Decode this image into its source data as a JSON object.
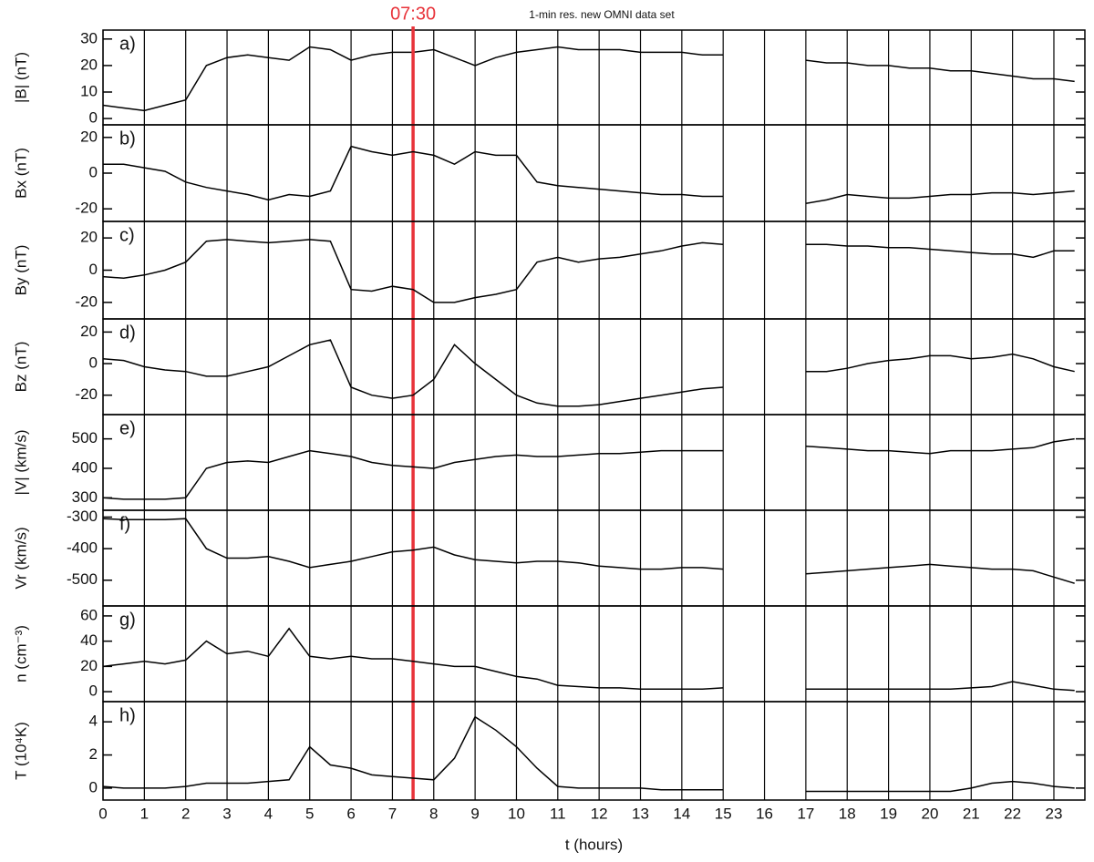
{
  "chart_data": [
    {
      "type": "line",
      "title": "1-min res. new OMNI data set",
      "panel_label": "a)",
      "y_label": "|B| (nT)",
      "annotation": {
        "x": 7.5,
        "label": "07:30",
        "color": "#e8333a"
      },
      "xlim": [
        0,
        23.75
      ],
      "xticks": [
        0,
        1,
        2,
        3,
        4,
        5,
        6,
        7,
        8,
        9,
        10,
        11,
        12,
        13,
        14,
        15,
        16,
        17,
        18,
        19,
        20,
        21,
        22,
        23
      ],
      "ylim": [
        -1,
        32
      ],
      "yticks": [
        0,
        10,
        20,
        30
      ],
      "grid": true,
      "x": [
        0,
        0.5,
        1,
        1.5,
        2,
        2.5,
        3,
        3.5,
        4,
        4.5,
        5,
        5.5,
        6,
        6.5,
        7,
        7.5,
        8,
        8.5,
        9,
        9.5,
        10,
        10.5,
        11,
        11.5,
        12,
        12.5,
        13,
        13.5,
        14,
        14.5,
        15,
        16,
        17,
        17.5,
        18,
        18.5,
        19,
        19.5,
        20,
        20.5,
        21,
        21.5,
        22,
        22.5,
        23,
        23.5
      ],
      "color": "#000000",
      "values": [
        5,
        4,
        3,
        5,
        7,
        20,
        23,
        24,
        23,
        22,
        27,
        26,
        22,
        24,
        25,
        25,
        26,
        23,
        20,
        23,
        25,
        26,
        27,
        26,
        26,
        26,
        25,
        25,
        25,
        24,
        24,
        null,
        22,
        21,
        21,
        20,
        20,
        19,
        19,
        18,
        18,
        17,
        16,
        15,
        15,
        14
      ]
    },
    {
      "type": "line",
      "panel_label": "b)",
      "y_label": "Bx (nT)",
      "xlim": [
        0,
        23.75
      ],
      "xticks": [
        0,
        1,
        2,
        3,
        4,
        5,
        6,
        7,
        8,
        9,
        10,
        11,
        12,
        13,
        14,
        15,
        16,
        17,
        18,
        19,
        20,
        21,
        22,
        23
      ],
      "ylim": [
        -25,
        25
      ],
      "yticks": [
        -20,
        0,
        20
      ],
      "grid": true,
      "x": [
        0,
        0.5,
        1,
        1.5,
        2,
        2.5,
        3,
        3.5,
        4,
        4.5,
        5,
        5.5,
        6,
        6.5,
        7,
        7.5,
        8,
        8.5,
        9,
        9.5,
        10,
        10.5,
        11,
        11.5,
        12,
        12.5,
        13,
        13.5,
        14,
        14.5,
        15,
        16,
        17,
        17.5,
        18,
        18.5,
        19,
        19.5,
        20,
        20.5,
        21,
        21.5,
        22,
        22.5,
        23,
        23.5
      ],
      "color": "#000000",
      "values": [
        5,
        5,
        3,
        1,
        -5,
        -8,
        -10,
        -12,
        -15,
        -12,
        -13,
        -10,
        15,
        12,
        10,
        12,
        10,
        5,
        12,
        10,
        10,
        -5,
        -7,
        -8,
        -9,
        -10,
        -11,
        -12,
        -12,
        -13,
        -13,
        null,
        -17,
        -15,
        -12,
        -13,
        -14,
        -14,
        -13,
        -12,
        -12,
        -11,
        -11,
        -12,
        -11,
        -10
      ]
    },
    {
      "type": "line",
      "panel_label": "c)",
      "y_label": "By (nT)",
      "xlim": [
        0,
        23.75
      ],
      "xticks": [
        0,
        1,
        2,
        3,
        4,
        5,
        6,
        7,
        8,
        9,
        10,
        11,
        12,
        13,
        14,
        15,
        16,
        17,
        18,
        19,
        20,
        21,
        22,
        23
      ],
      "ylim": [
        -28,
        28
      ],
      "yticks": [
        -20,
        0,
        20
      ],
      "grid": true,
      "x": [
        0,
        0.5,
        1,
        1.5,
        2,
        2.5,
        3,
        3.5,
        4,
        4.5,
        5,
        5.5,
        6,
        6.5,
        7,
        7.5,
        8,
        8.5,
        9,
        9.5,
        10,
        10.5,
        11,
        11.5,
        12,
        12.5,
        13,
        13.5,
        14,
        14.5,
        15,
        16,
        17,
        17.5,
        18,
        18.5,
        19,
        19.5,
        20,
        20.5,
        21,
        21.5,
        22,
        22.5,
        23,
        23.5
      ],
      "color": "#000000",
      "values": [
        -4,
        -5,
        -3,
        0,
        5,
        18,
        19,
        18,
        17,
        18,
        19,
        18,
        -12,
        -13,
        -10,
        -12,
        -20,
        -20,
        -17,
        -15,
        -12,
        5,
        8,
        5,
        7,
        8,
        10,
        12,
        15,
        17,
        16,
        null,
        16,
        16,
        15,
        15,
        14,
        14,
        13,
        12,
        11,
        10,
        10,
        8,
        12,
        12
      ]
    },
    {
      "type": "line",
      "panel_label": "d)",
      "y_label": "Bz (nT)",
      "xlim": [
        0,
        23.75
      ],
      "xticks": [
        0,
        1,
        2,
        3,
        4,
        5,
        6,
        7,
        8,
        9,
        10,
        11,
        12,
        13,
        14,
        15,
        16,
        17,
        18,
        19,
        20,
        21,
        22,
        23
      ],
      "ylim": [
        -30,
        26
      ],
      "yticks": [
        -20,
        0,
        20
      ],
      "grid": true,
      "x": [
        0,
        0.5,
        1,
        1.5,
        2,
        2.5,
        3,
        3.5,
        4,
        4.5,
        5,
        5.5,
        6,
        6.5,
        7,
        7.5,
        8,
        8.5,
        9,
        9.5,
        10,
        10.5,
        11,
        11.5,
        12,
        12.5,
        13,
        13.5,
        14,
        14.5,
        15,
        16,
        17,
        17.5,
        18,
        18.5,
        19,
        19.5,
        20,
        20.5,
        21,
        21.5,
        22,
        22.5,
        23,
        23.5
      ],
      "color": "#000000",
      "values": [
        3,
        2,
        -2,
        -4,
        -5,
        -8,
        -8,
        -5,
        -2,
        5,
        12,
        15,
        -15,
        -20,
        -22,
        -20,
        -10,
        12,
        0,
        -10,
        -20,
        -25,
        -27,
        -27,
        -26,
        -24,
        -22,
        -20,
        -18,
        -16,
        -15,
        null,
        -5,
        -5,
        -3,
        0,
        2,
        3,
        5,
        5,
        3,
        4,
        6,
        3,
        -2,
        -5
      ]
    },
    {
      "type": "line",
      "panel_label": "e)",
      "y_label": "|V| (km/s)",
      "xlim": [
        0,
        23.75
      ],
      "xticks": [
        0,
        1,
        2,
        3,
        4,
        5,
        6,
        7,
        8,
        9,
        10,
        11,
        12,
        13,
        14,
        15,
        16,
        17,
        18,
        19,
        20,
        21,
        22,
        23
      ],
      "ylim": [
        270,
        570
      ],
      "yticks": [
        300,
        400,
        500
      ],
      "grid": true,
      "x": [
        0,
        0.5,
        1,
        1.5,
        2,
        2.5,
        3,
        3.5,
        4,
        4.5,
        5,
        5.5,
        6,
        6.5,
        7,
        7.5,
        8,
        8.5,
        9,
        9.5,
        10,
        10.5,
        11,
        11.5,
        12,
        12.5,
        13,
        13.5,
        14,
        14.5,
        15,
        16,
        17,
        17.5,
        18,
        18.5,
        19,
        19.5,
        20,
        20.5,
        21,
        21.5,
        22,
        22.5,
        23,
        23.5
      ],
      "color": "#000000",
      "values": [
        300,
        295,
        295,
        295,
        300,
        400,
        420,
        425,
        420,
        440,
        460,
        450,
        440,
        420,
        410,
        405,
        400,
        420,
        430,
        440,
        445,
        440,
        440,
        445,
        450,
        450,
        455,
        460,
        460,
        460,
        460,
        null,
        475,
        470,
        465,
        460,
        460,
        455,
        450,
        460,
        460,
        460,
        465,
        470,
        490,
        500
      ]
    },
    {
      "type": "line",
      "panel_label": "f)",
      "y_label": "Vr (km/s)",
      "xlim": [
        0,
        23.75
      ],
      "xticks": [
        0,
        1,
        2,
        3,
        4,
        5,
        6,
        7,
        8,
        9,
        10,
        11,
        12,
        13,
        14,
        15,
        16,
        17,
        18,
        19,
        20,
        21,
        22,
        23
      ],
      "ylim": [
        -570,
        -290
      ],
      "yticks": [
        -300,
        -400,
        -500
      ],
      "grid": true,
      "x": [
        0,
        0.5,
        1,
        1.5,
        2,
        2.5,
        3,
        3.5,
        4,
        4.5,
        5,
        5.5,
        6,
        6.5,
        7,
        7.5,
        8,
        8.5,
        9,
        9.5,
        10,
        10.5,
        11,
        11.5,
        12,
        12.5,
        13,
        13.5,
        14,
        14.5,
        15,
        16,
        17,
        17.5,
        18,
        18.5,
        19,
        19.5,
        20,
        20.5,
        21,
        21.5,
        22,
        22.5,
        23,
        23.5
      ],
      "color": "#000000",
      "values": [
        -305,
        -308,
        -308,
        -308,
        -305,
        -400,
        -430,
        -430,
        -425,
        -440,
        -460,
        -450,
        -440,
        -425,
        -410,
        -405,
        -395,
        -420,
        -435,
        -440,
        -445,
        -440,
        -440,
        -445,
        -455,
        -460,
        -465,
        -465,
        -460,
        -460,
        -465,
        null,
        -480,
        -475,
        -470,
        -465,
        -460,
        -455,
        -450,
        -455,
        -460,
        -465,
        -465,
        -470,
        -490,
        -510
      ]
    },
    {
      "type": "line",
      "panel_label": "g)",
      "y_label": "n (cm⁻³)",
      "xlim": [
        0,
        23.75
      ],
      "xticks": [
        0,
        1,
        2,
        3,
        4,
        5,
        6,
        7,
        8,
        9,
        10,
        11,
        12,
        13,
        14,
        15,
        16,
        17,
        18,
        19,
        20,
        21,
        22,
        23
      ],
      "ylim": [
        -5,
        65
      ],
      "yticks": [
        0,
        20,
        40,
        60
      ],
      "grid": true,
      "x": [
        0,
        0.5,
        1,
        1.5,
        2,
        2.5,
        3,
        3.5,
        4,
        4.5,
        5,
        5.5,
        6,
        6.5,
        7,
        7.5,
        8,
        8.5,
        9,
        9.5,
        10,
        10.5,
        11,
        11.5,
        12,
        12.5,
        13,
        13.5,
        14,
        14.5,
        15,
        16,
        17,
        17.5,
        18,
        18.5,
        19,
        19.5,
        20,
        20.5,
        21,
        21.5,
        22,
        22.5,
        23,
        23.5
      ],
      "color": "#000000",
      "values": [
        20,
        22,
        24,
        22,
        25,
        40,
        30,
        32,
        28,
        50,
        28,
        26,
        28,
        26,
        26,
        24,
        22,
        20,
        20,
        16,
        12,
        10,
        5,
        4,
        3,
        3,
        2,
        2,
        2,
        2,
        3,
        null,
        2,
        2,
        2,
        2,
        2,
        2,
        2,
        2,
        3,
        4,
        8,
        5,
        2,
        1
      ]
    },
    {
      "type": "line",
      "panel_label": "h)",
      "y_label": "T (10⁴K)",
      "x_label": "t (hours)",
      "xlim": [
        0,
        23.75
      ],
      "xticks": [
        0,
        1,
        2,
        3,
        4,
        5,
        6,
        7,
        8,
        9,
        10,
        11,
        12,
        13,
        14,
        15,
        16,
        17,
        18,
        19,
        20,
        21,
        22,
        23
      ],
      "ylim": [
        -0.5,
        5
      ],
      "yticks": [
        0,
        2,
        4
      ],
      "grid": true,
      "x": [
        0,
        0.5,
        1,
        1.5,
        2,
        2.5,
        3,
        3.5,
        4,
        4.5,
        5,
        5.5,
        6,
        6.5,
        7,
        7.5,
        8,
        8.5,
        9,
        9.5,
        10,
        10.5,
        11,
        11.5,
        12,
        12.5,
        13,
        13.5,
        14,
        14.5,
        15,
        16,
        17,
        17.5,
        18,
        18.5,
        19,
        19.5,
        20,
        20.5,
        21,
        21.5,
        22,
        22.5,
        23,
        23.5
      ],
      "color": "#000000",
      "values": [
        0.1,
        0,
        0,
        0,
        0.1,
        0.3,
        0.3,
        0.3,
        0.4,
        0.5,
        2.5,
        1.4,
        1.2,
        0.8,
        0.7,
        0.6,
        0.5,
        1.8,
        4.3,
        3.5,
        2.5,
        1.2,
        0.1,
        0,
        0,
        0,
        0,
        -0.1,
        -0.1,
        -0.1,
        -0.1,
        null,
        -0.2,
        -0.2,
        -0.2,
        -0.2,
        -0.2,
        -0.2,
        -0.2,
        -0.2,
        0,
        0.3,
        0.4,
        0.3,
        0.1,
        0
      ]
    }
  ]
}
